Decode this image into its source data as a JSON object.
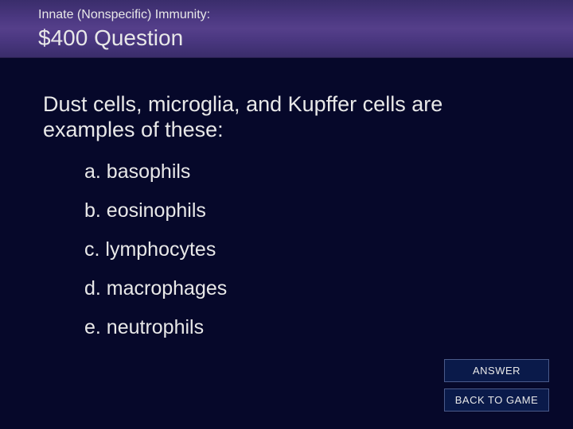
{
  "header": {
    "category": "Innate (Nonspecific) Immunity:",
    "value_line": "$400 Question"
  },
  "question": {
    "prompt": "Dust cells, microglia, and Kupffer cells are examples of these:",
    "options": [
      "a. basophils",
      "b. eosinophils",
      "c. lymphocytes",
      "d. macrophages",
      "e. neutrophils"
    ]
  },
  "buttons": {
    "answer": "ANSWER",
    "back": "BACK TO GAME"
  },
  "colors": {
    "background": "#06082a",
    "header_gradient_top": "#3a2d6b",
    "header_gradient_mid": "#553f8a",
    "text": "#e8e8e8",
    "button_bg": "#0a1a4a",
    "button_border": "#4a5a8a"
  },
  "typography": {
    "category_fontsize": 16,
    "value_fontsize": 28,
    "question_fontsize": 27,
    "option_fontsize": 25,
    "button_fontsize": 13
  }
}
